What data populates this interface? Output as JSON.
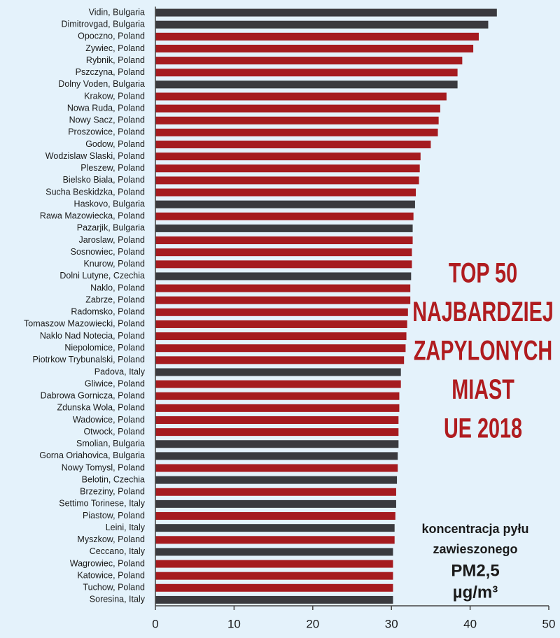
{
  "chart_data": {
    "type": "hbar",
    "categories": [
      "Vidin, Bulgaria",
      "Dimitrovgad, Bulgaria",
      "Opoczno, Poland",
      "Zywiec, Poland",
      "Rybnik, Poland",
      "Pszczyna, Poland",
      "Dolny Voden, Bulgaria",
      "Krakow, Poland",
      "Nowa Ruda, Poland",
      "Nowy Sacz, Poland",
      "Proszowice, Poland",
      "Godow, Poland",
      "Wodzislaw Slaski, Poland",
      "Pleszew, Poland",
      "Bielsko Biala, Poland",
      "Sucha Beskidzka, Poland",
      "Haskovo, Bulgaria",
      "Rawa Mazowiecka, Poland",
      "Pazarjik, Bulgaria",
      "Jaroslaw, Poland",
      "Sosnowiec, Poland",
      "Knurow, Poland",
      "Dolni Lutyne, Czechia",
      "Naklo, Poland",
      "Zabrze, Poland",
      "Radomsko, Poland",
      "Tomaszow Mazowiecki, Poland",
      "Naklo Nad Notecia, Poland",
      "Niepolomice, Poland",
      "Piotrkow Trybunalski, Poland",
      "Padova, Italy",
      "Gliwice, Poland",
      "Dabrowa Gornicza, Poland",
      "Zdunska Wola, Poland",
      "Wadowice, Poland",
      "Otwock, Poland",
      "Smolian, Bulgaria",
      "Gorna Oriahovica, Bulgaria",
      "Nowy Tomysl, Poland",
      "Belotin, Czechia",
      "Brzeziny, Poland",
      "Settimo Torinese, Italy",
      "Piastow, Poland",
      "Leini, Italy",
      "Myszkow, Poland",
      "Ceccano, Italy",
      "Wagrowiec, Poland",
      "Katowice, Poland",
      "Tuchow, Poland",
      "Soresina, Italy"
    ],
    "values": [
      43.4,
      42.3,
      41.1,
      40.4,
      39.0,
      38.4,
      38.4,
      37.0,
      36.2,
      36.0,
      35.9,
      35.0,
      33.7,
      33.6,
      33.5,
      33.1,
      33.0,
      32.8,
      32.7,
      32.7,
      32.6,
      32.6,
      32.5,
      32.4,
      32.4,
      32.1,
      32.0,
      31.9,
      31.8,
      31.6,
      31.2,
      31.2,
      31.0,
      31.0,
      30.9,
      30.9,
      30.9,
      30.8,
      30.8,
      30.7,
      30.6,
      30.6,
      30.5,
      30.4,
      30.4,
      30.2,
      30.2,
      30.2,
      30.2,
      30.2
    ],
    "colors": [
      "#3a3a3e",
      "#3a3a3e",
      "#a51b1f",
      "#a51b1f",
      "#a51b1f",
      "#a51b1f",
      "#3a3a3e",
      "#a51b1f",
      "#a51b1f",
      "#a51b1f",
      "#a51b1f",
      "#a51b1f",
      "#a51b1f",
      "#a51b1f",
      "#a51b1f",
      "#a51b1f",
      "#3a3a3e",
      "#a51b1f",
      "#3a3a3e",
      "#a51b1f",
      "#a51b1f",
      "#a51b1f",
      "#3a3a3e",
      "#a51b1f",
      "#a51b1f",
      "#a51b1f",
      "#a51b1f",
      "#a51b1f",
      "#a51b1f",
      "#a51b1f",
      "#3a3a3e",
      "#a51b1f",
      "#a51b1f",
      "#a51b1f",
      "#a51b1f",
      "#a51b1f",
      "#3a3a3e",
      "#3a3a3e",
      "#a51b1f",
      "#3a3a3e",
      "#a51b1f",
      "#3a3a3e",
      "#a51b1f",
      "#3a3a3e",
      "#a51b1f",
      "#3a3a3e",
      "#a51b1f",
      "#a51b1f",
      "#a51b1f",
      "#3a3a3e"
    ],
    "xlim": [
      0,
      50
    ],
    "xticks": [
      0,
      10,
      20,
      30,
      40,
      50
    ],
    "title_lines": [
      "TOP 50",
      "NAJBARDZIEJ",
      "ZAPYLONYCH",
      "MIAST",
      "UE 2018"
    ],
    "note_lines": [
      "koncentracja pyłu",
      "zawieszonego",
      "PM2,5",
      "µg/m³"
    ]
  }
}
